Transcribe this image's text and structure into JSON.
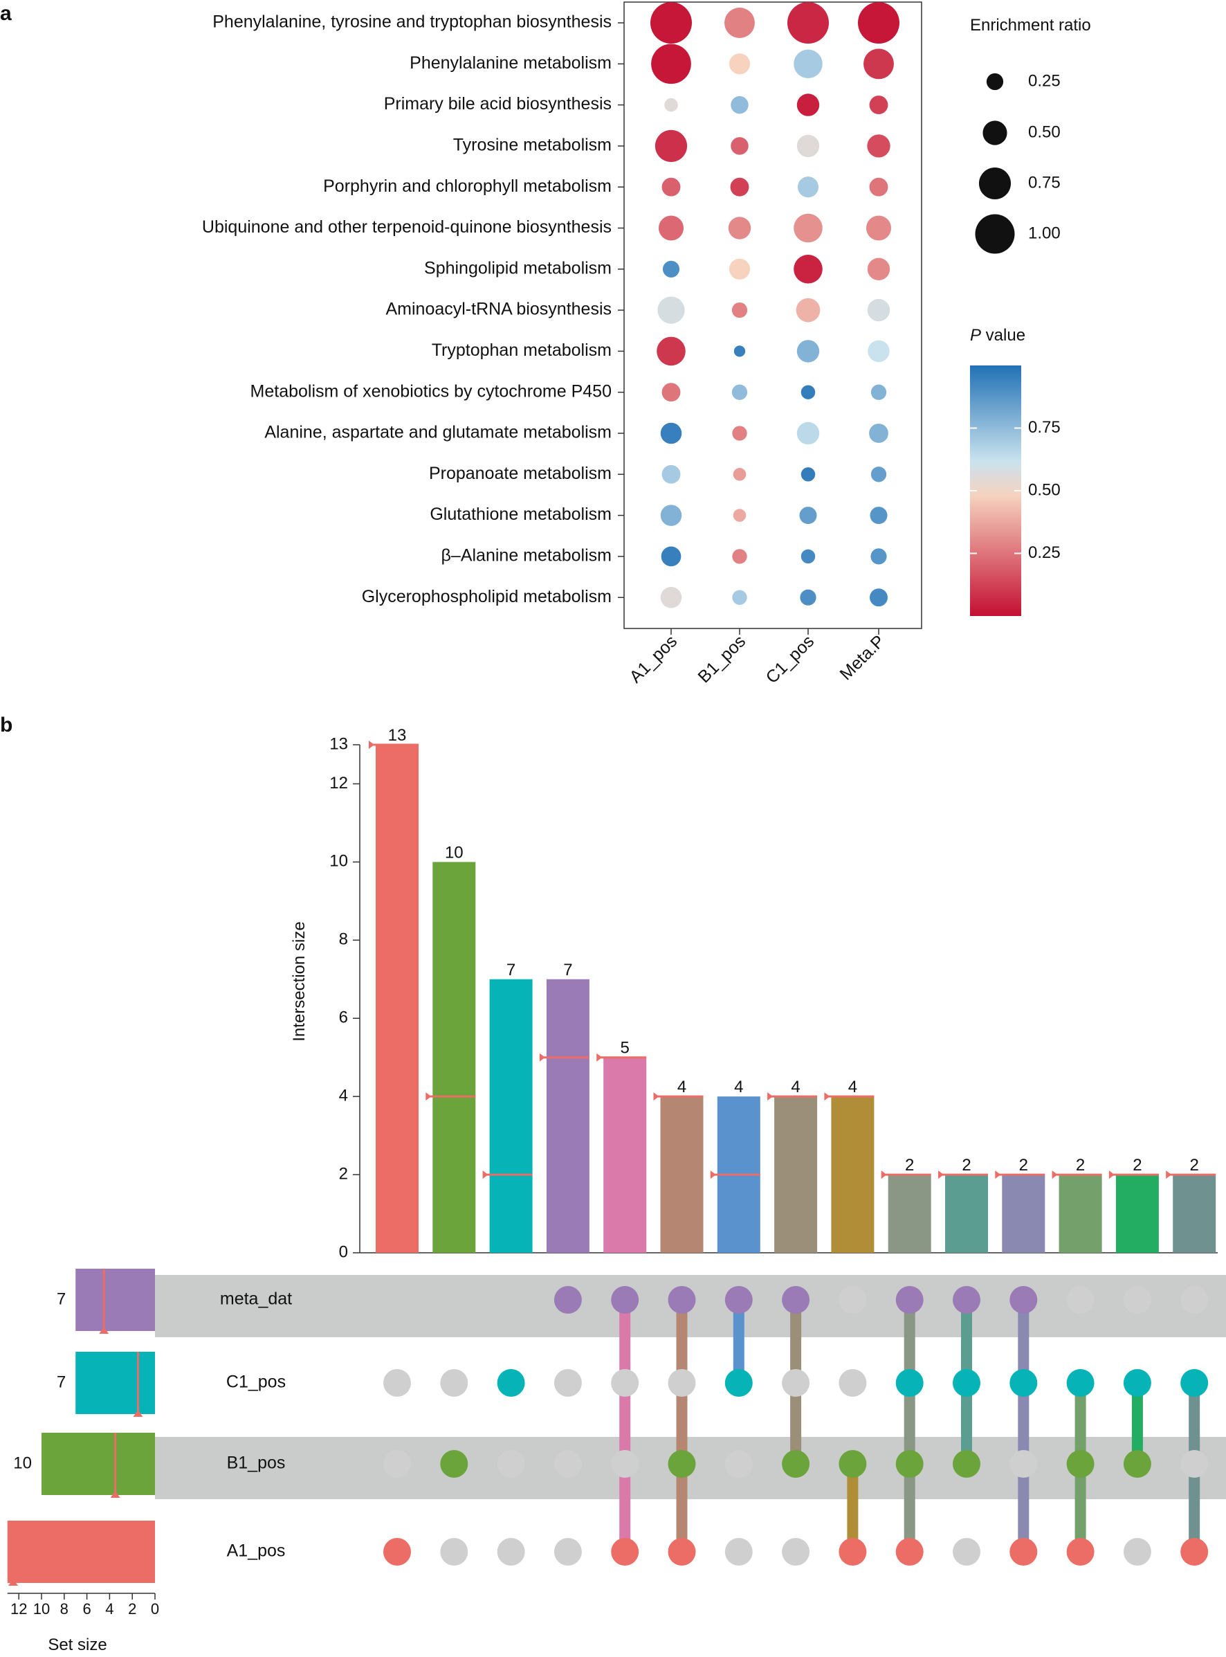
{
  "panels": {
    "a_label": "a",
    "b_label": "b"
  },
  "chart_data": [
    {
      "type": "scatter",
      "subtype": "bubble-matrix",
      "title": "",
      "rows": [
        "Phenylalanine, tyrosine and tryptophan biosynthesis",
        "Phenylalanine metabolism",
        "Primary bile acid biosynthesis",
        "Tyrosine metabolism",
        "Porphyrin and chlorophyll metabolism",
        "Ubiquinone and other terpenoid-quinone biosynthesis",
        "Sphingolipid metabolism",
        "Aminoacyl-tRNA biosynthesis",
        "Tryptophan metabolism",
        "Metabolism of xenobiotics by cytochrome P450",
        "Alanine, aspartate and glutamate metabolism",
        "Propanoate metabolism",
        "Glutathione metabolism",
        "β–Alanine metabolism",
        "Glycerophospholipid metabolism"
      ],
      "columns": [
        "A1_pos",
        "B1_pos",
        "C1_pos",
        "Meta.P"
      ],
      "enrichment_ratio": [
        [
          1.0,
          0.65,
          1.0,
          1.0
        ],
        [
          0.95,
          0.35,
          0.6,
          0.65
        ],
        [
          0.12,
          0.25,
          0.4,
          0.28
        ],
        [
          0.7,
          0.25,
          0.4,
          0.42
        ],
        [
          0.28,
          0.28,
          0.35,
          0.28
        ],
        [
          0.48,
          0.4,
          0.6,
          0.48
        ],
        [
          0.22,
          0.35,
          0.6,
          0.4
        ],
        [
          0.55,
          0.18,
          0.45,
          0.4
        ],
        [
          0.6,
          0.05,
          0.4,
          0.38
        ],
        [
          0.28,
          0.18,
          0.14,
          0.18
        ],
        [
          0.36,
          0.16,
          0.4,
          0.3
        ],
        [
          0.28,
          0.1,
          0.14,
          0.18
        ],
        [
          0.36,
          0.1,
          0.24,
          0.24
        ],
        [
          0.32,
          0.16,
          0.14,
          0.2
        ],
        [
          0.36,
          0.16,
          0.2,
          0.26
        ]
      ],
      "p_value": [
        [
          0.02,
          0.28,
          0.06,
          0.02
        ],
        [
          0.02,
          0.48,
          0.7,
          0.1
        ],
        [
          0.55,
          0.75,
          0.04,
          0.12
        ],
        [
          0.08,
          0.2,
          0.55,
          0.15
        ],
        [
          0.2,
          0.12,
          0.7,
          0.25
        ],
        [
          0.22,
          0.3,
          0.32,
          0.3
        ],
        [
          0.9,
          0.48,
          0.05,
          0.3
        ],
        [
          0.58,
          0.28,
          0.4,
          0.58
        ],
        [
          0.1,
          0.95,
          0.78,
          0.62
        ],
        [
          0.25,
          0.75,
          0.96,
          0.78
        ],
        [
          0.95,
          0.28,
          0.65,
          0.78
        ],
        [
          0.7,
          0.35,
          0.96,
          0.85
        ],
        [
          0.78,
          0.38,
          0.85,
          0.88
        ],
        [
          0.95,
          0.28,
          0.92,
          0.88
        ],
        [
          0.55,
          0.7,
          0.9,
          0.92
        ]
      ],
      "size_legend": {
        "title": "Enrichment ratio",
        "values": [
          0.25,
          0.5,
          0.75,
          1.0
        ],
        "labels": [
          "0.25",
          "0.50",
          "0.75",
          "1.00"
        ]
      },
      "color_legend": {
        "title_italic": "P",
        "title_rest": " value",
        "ticks": [
          0.75,
          0.5,
          0.25
        ],
        "labels": [
          "0.75",
          "0.50",
          "0.25"
        ],
        "range": [
          0.0,
          1.0
        ],
        "colors": [
          "#c40f32",
          "#f6d2bf",
          "#c9e2ee",
          "#2171b5"
        ]
      }
    },
    {
      "type": "bar",
      "subtype": "upset",
      "ylabel": "Intersection size",
      "yticks": [
        0,
        2,
        4,
        6,
        8,
        10,
        12,
        13
      ],
      "ylim": [
        0,
        13
      ],
      "values": [
        13,
        10,
        7,
        7,
        5,
        4,
        4,
        4,
        4,
        2,
        2,
        2,
        2,
        2,
        2
      ],
      "value_labels": [
        "13",
        "10",
        "7",
        "7",
        "5",
        "4",
        "4",
        "4",
        "4",
        "2",
        "2",
        "2",
        "2",
        "2",
        "2"
      ],
      "query_marks": [
        13,
        4,
        2,
        5,
        5,
        4,
        null,
        4,
        4,
        2,
        2,
        2,
        2,
        2,
        2
      ],
      "query_marks_inside": [
        null,
        null,
        null,
        null,
        null,
        null,
        2,
        null,
        null,
        null,
        null,
        null,
        null,
        null,
        null
      ],
      "colors": [
        "#ec6d66",
        "#6aa43b",
        "#06b3b6",
        "#9a7bb6",
        "#d97aab",
        "#b58772",
        "#5a92ce",
        "#9b8f79",
        "#b08e38",
        "#8b9785",
        "#5b9e91",
        "#8a89b2",
        "#73a06b",
        "#23ad62",
        "#6f9190"
      ],
      "sets": [
        "meta_dat",
        "C1_pos",
        "B1_pos",
        "A1_pos"
      ],
      "set_sizes": [
        7,
        7,
        10,
        13
      ],
      "set_size_labels": [
        "7",
        "7",
        "10",
        ""
      ],
      "set_colors": [
        "#9a7bb6",
        "#06b3b6",
        "#6aa43b",
        "#ec6d66"
      ],
      "set_markers": [
        4.5,
        1.5,
        3.5,
        12.5
      ],
      "set_xlabel": "Set size",
      "set_xticks": [
        12,
        10,
        8,
        6,
        4,
        2,
        0
      ],
      "set_xtick_labels": [
        "12",
        "10",
        "8",
        "6",
        "4",
        "2",
        "0"
      ],
      "set_xlim": [
        13,
        0
      ],
      "membership": [
        [
          0,
          0,
          0,
          1
        ],
        [
          0,
          0,
          1,
          0
        ],
        [
          0,
          1,
          0,
          0
        ],
        [
          1,
          0,
          0,
          0
        ],
        [
          1,
          0,
          0,
          1
        ],
        [
          1,
          0,
          1,
          1
        ],
        [
          1,
          1,
          0,
          0
        ],
        [
          1,
          0,
          1,
          0
        ],
        [
          0,
          0,
          1,
          1
        ],
        [
          1,
          1,
          1,
          1
        ],
        [
          1,
          1,
          1,
          0
        ],
        [
          1,
          1,
          0,
          1
        ],
        [
          0,
          1,
          1,
          1
        ],
        [
          0,
          1,
          1,
          0
        ],
        [
          0,
          1,
          0,
          1
        ]
      ]
    }
  ]
}
